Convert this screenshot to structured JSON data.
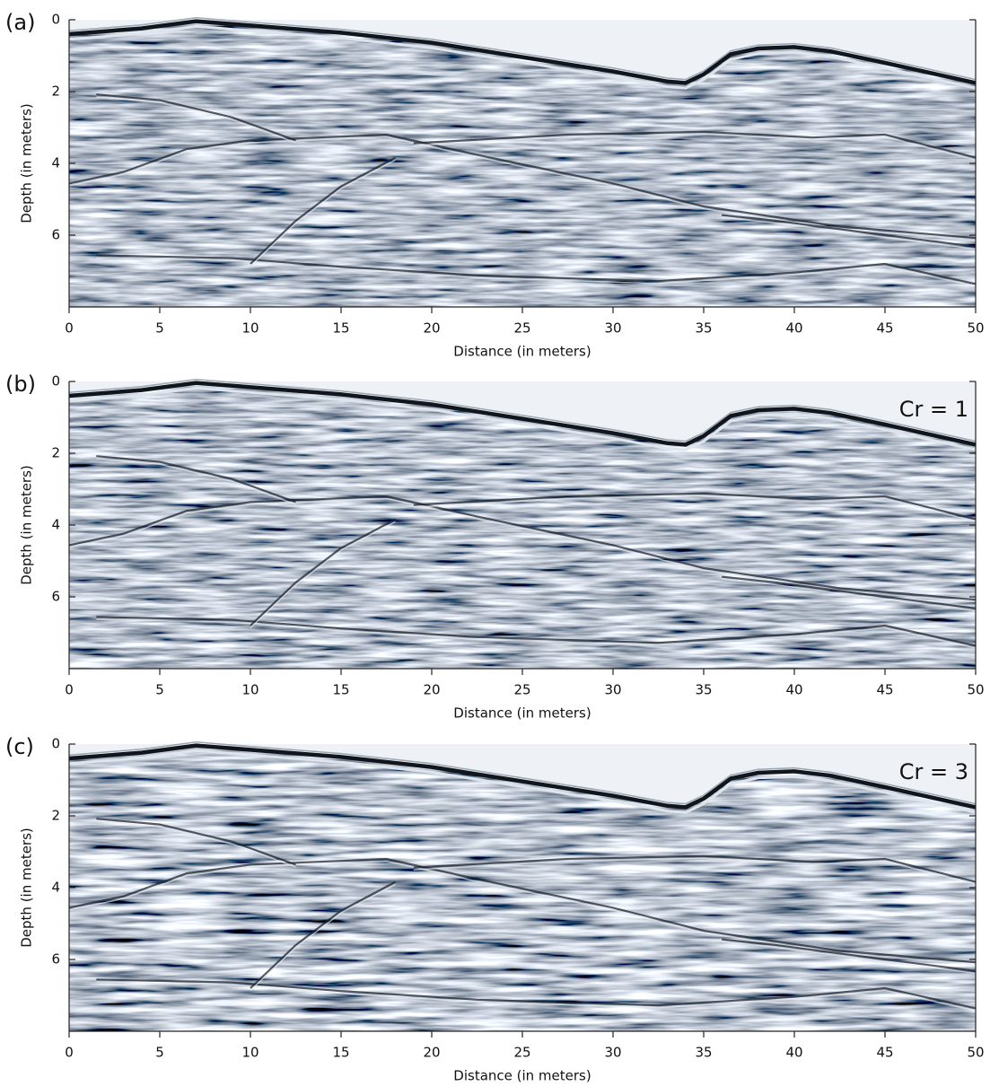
{
  "chart_data": [
    {
      "type": "radargram",
      "panel_label": "(a)",
      "xlabel": "Distance (in meters)",
      "ylabel": "Depth (in meters)",
      "xlim": [
        0,
        50
      ],
      "xticks": [
        0,
        5,
        10,
        15,
        20,
        25,
        30,
        35,
        40,
        45,
        50
      ],
      "ylim": [
        0,
        8
      ],
      "yticks": [
        0,
        2,
        4,
        6
      ],
      "y_inverted": true
    },
    {
      "type": "radargram",
      "panel_label": "(b)",
      "annotation": "Cr = 1",
      "xlabel": "Distance (in meters)",
      "ylabel": "Depth (in meters)",
      "xlim": [
        0,
        50
      ],
      "xticks": [
        0,
        5,
        10,
        15,
        20,
        25,
        30,
        35,
        40,
        45,
        50
      ],
      "ylim": [
        0,
        8
      ],
      "yticks": [
        0,
        2,
        4,
        6
      ],
      "y_inverted": true
    },
    {
      "type": "radargram",
      "panel_label": "(c)",
      "annotation": "Cr = 3",
      "xlabel": "Distance (in meters)",
      "ylabel": "Depth (in meters)",
      "xlim": [
        0,
        50
      ],
      "xticks": [
        0,
        5,
        10,
        15,
        20,
        25,
        30,
        35,
        40,
        45,
        50
      ],
      "ylim": [
        0,
        8
      ],
      "yticks": [
        0,
        2,
        4,
        6
      ],
      "y_inverted": true
    }
  ]
}
